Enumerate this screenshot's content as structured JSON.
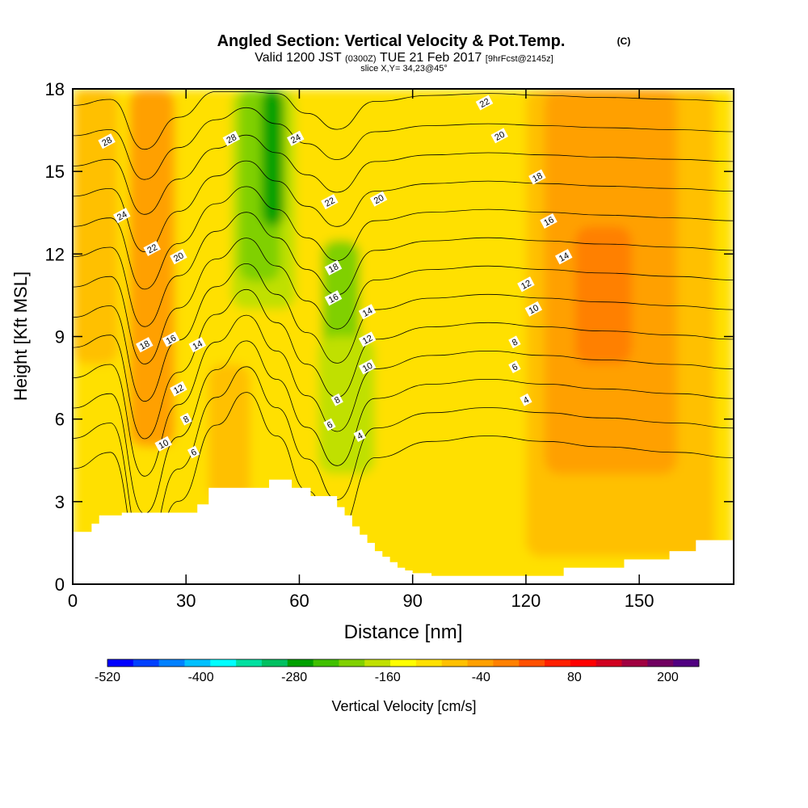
{
  "chart_data": {
    "type": "heatmap",
    "title": "Angled Section: Vertical Velocity & Pot.Temp.",
    "title_unit": "(C)",
    "subtitle": {
      "valid": "Valid 1200 JST",
      "utc": "(0300Z)",
      "date": "TUE 21 Feb 2017",
      "forecast": "[9hrFcst@2145z]"
    },
    "slice_label": "slice X,Y= 34,23@45°",
    "xlabel": "Distance [nm]",
    "ylabel": "Height [Kft MSL]",
    "xlim": [
      0,
      175
    ],
    "ylim": [
      0,
      18
    ],
    "x_ticks": [
      0,
      30,
      60,
      90,
      120,
      150
    ],
    "x_tick_labels": [
      "0",
      "30",
      "60",
      "90",
      "120",
      "150"
    ],
    "y_ticks": [
      0,
      3,
      6,
      9,
      12,
      15,
      18
    ],
    "y_tick_labels": [
      "0",
      "3",
      "6",
      "9",
      "12",
      "15",
      "18"
    ],
    "colorbar": {
      "label": "Vertical Velocity [cm/s]",
      "min": -520,
      "max": 240,
      "step": 40,
      "tick_values": [
        -520,
        -400,
        -280,
        -160,
        -40,
        80,
        200
      ],
      "tick_labels": [
        "-520",
        "-400",
        "-280",
        "-160",
        "-40",
        "80",
        "200"
      ],
      "colors": [
        "#0000ff",
        "#0040ff",
        "#0080ff",
        "#00c0ff",
        "#00ffff",
        "#00e0a0",
        "#00c060",
        "#00a000",
        "#40c000",
        "#80d000",
        "#c0e000",
        "#ffff00",
        "#ffe000",
        "#ffc000",
        "#ffa000",
        "#ff8000",
        "#ff5000",
        "#ff2000",
        "#ff0000",
        "#d00020",
        "#a00040",
        "#700060",
        "#500080"
      ]
    },
    "velocity_field": {
      "units": "cm/s",
      "regions": [
        {
          "x": [
            0,
            175
          ],
          "y": [
            0,
            18
          ],
          "value": -40
        },
        {
          "x": [
            0,
            12
          ],
          "y": [
            8,
            18
          ],
          "value": 0
        },
        {
          "x": [
            15,
            27
          ],
          "y": [
            5,
            18
          ],
          "value": 40
        },
        {
          "x": [
            36,
            47
          ],
          "y": [
            3,
            8
          ],
          "value": 0
        },
        {
          "x": [
            42,
            59
          ],
          "y": [
            10,
            18
          ],
          "value": -120
        },
        {
          "x": [
            44,
            55
          ],
          "y": [
            11,
            18
          ],
          "value": -160
        },
        {
          "x": [
            50,
            56
          ],
          "y": [
            13,
            18
          ],
          "value": -240
        },
        {
          "x": [
            66,
            76
          ],
          "y": [
            6,
            12.5
          ],
          "value": -160
        },
        {
          "x": [
            65,
            80
          ],
          "y": [
            4,
            9
          ],
          "value": -120
        },
        {
          "x": [
            120,
            170
          ],
          "y": [
            1,
            18
          ],
          "value": 0
        },
        {
          "x": [
            125,
            160
          ],
          "y": [
            4,
            18
          ],
          "value": 40
        },
        {
          "x": [
            133,
            148
          ],
          "y": [
            8,
            13
          ],
          "value": 80
        }
      ]
    },
    "theta_contours": {
      "units": "C",
      "levels": [
        4,
        6,
        8,
        10,
        12,
        14,
        16,
        18,
        20,
        22,
        24,
        26,
        28
      ],
      "labels": [
        {
          "text": "28",
          "x": 9,
          "y": 16.1
        },
        {
          "text": "24",
          "x": 13,
          "y": 13.4
        },
        {
          "text": "22",
          "x": 21,
          "y": 12.2
        },
        {
          "text": "20",
          "x": 28,
          "y": 11.9
        },
        {
          "text": "18",
          "x": 19,
          "y": 8.7
        },
        {
          "text": "16",
          "x": 26,
          "y": 8.9
        },
        {
          "text": "14",
          "x": 33,
          "y": 8.7
        },
        {
          "text": "12",
          "x": 28,
          "y": 7.1
        },
        {
          "text": "10",
          "x": 24,
          "y": 5.1
        },
        {
          "text": "8",
          "x": 30,
          "y": 6.0
        },
        {
          "text": "6",
          "x": 32,
          "y": 4.8
        },
        {
          "text": "28",
          "x": 42,
          "y": 16.2
        },
        {
          "text": "24",
          "x": 59,
          "y": 16.2
        },
        {
          "text": "22",
          "x": 68,
          "y": 13.9
        },
        {
          "text": "20",
          "x": 81,
          "y": 14.0
        },
        {
          "text": "18",
          "x": 69,
          "y": 11.5
        },
        {
          "text": "16",
          "x": 69,
          "y": 10.4
        },
        {
          "text": "14",
          "x": 78,
          "y": 9.9
        },
        {
          "text": "12",
          "x": 78,
          "y": 8.9
        },
        {
          "text": "10",
          "x": 78,
          "y": 7.9
        },
        {
          "text": "8",
          "x": 70,
          "y": 6.7
        },
        {
          "text": "6",
          "x": 68,
          "y": 5.8
        },
        {
          "text": "4",
          "x": 76,
          "y": 5.4
        },
        {
          "text": "22",
          "x": 109,
          "y": 17.5
        },
        {
          "text": "20",
          "x": 113,
          "y": 16.3
        },
        {
          "text": "18",
          "x": 123,
          "y": 14.8
        },
        {
          "text": "16",
          "x": 126,
          "y": 13.2
        },
        {
          "text": "14",
          "x": 130,
          "y": 11.9
        },
        {
          "text": "12",
          "x": 120,
          "y": 10.9
        },
        {
          "text": "10",
          "x": 122,
          "y": 10.0
        },
        {
          "text": "8",
          "x": 117,
          "y": 8.8
        },
        {
          "text": "6",
          "x": 117,
          "y": 7.9
        },
        {
          "text": "4",
          "x": 120,
          "y": 6.7
        }
      ]
    },
    "terrain": {
      "x": [
        0,
        3,
        5,
        7,
        13,
        30,
        33,
        36,
        48,
        52,
        58,
        63,
        68,
        70,
        72,
        74,
        76,
        78,
        80,
        82,
        84,
        86,
        88,
        90,
        95,
        100,
        120,
        130,
        138,
        146,
        152,
        158,
        165,
        175
      ],
      "height": [
        1.9,
        1.9,
        2.2,
        2.5,
        2.6,
        2.6,
        2.9,
        3.5,
        3.5,
        3.8,
        3.5,
        3.2,
        3.2,
        2.8,
        2.5,
        2.1,
        1.8,
        1.5,
        1.2,
        1.0,
        0.8,
        0.6,
        0.5,
        0.4,
        0.3,
        0.3,
        0.3,
        0.6,
        0.6,
        0.9,
        0.9,
        1.2,
        1.6,
        1.6
      ]
    }
  }
}
